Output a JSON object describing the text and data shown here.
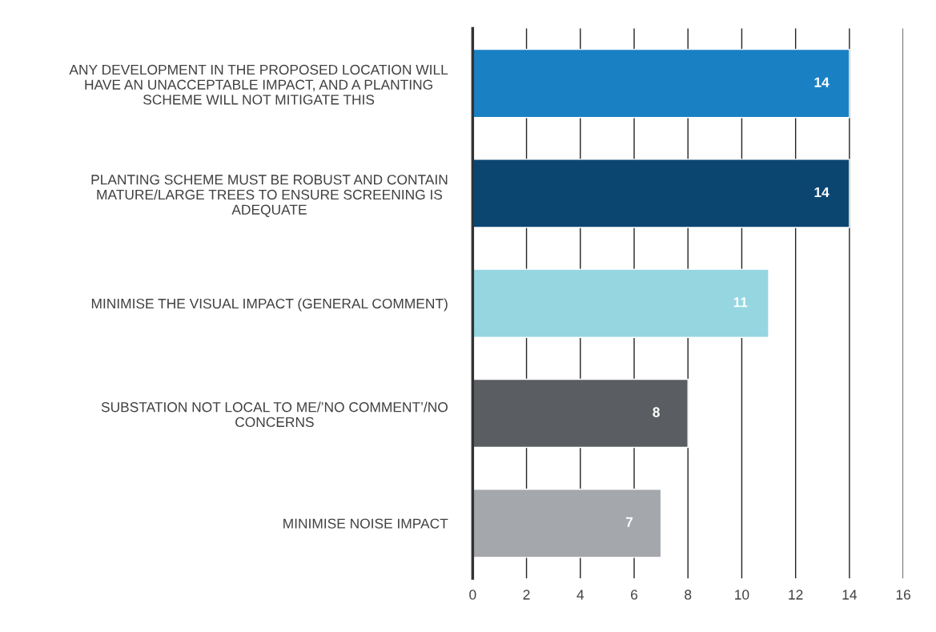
{
  "chart_data": {
    "type": "bar",
    "orientation": "horizontal",
    "categories": [
      "ANY DEVELOPMENT IN THE PROPOSED LOCATION WILL\nHAVE AN UNACCEPTABLE IMPACT, AND A PLANTING\nSCHEME WILL NOT MITIGATE THIS",
      "PLANTING SCHEME MUST BE ROBUST AND CONTAIN\nMATURE/LARGE TREES TO ENSURE SCREENING IS\nADEQUATE",
      "MINIMISE THE VISUAL IMPACT (GENERAL COMMENT)",
      "SUBSTATION NOT LOCAL TO ME/’NO COMMENT’/NO\nCONCERNS",
      "MINIMISE NOISE IMPACT"
    ],
    "values": [
      14,
      14,
      11,
      8,
      7
    ],
    "colors": [
      "#1a80c4",
      "#0b4670",
      "#95d6e1",
      "#5a5e62",
      "#a4a7ab"
    ],
    "xlim": [
      0,
      16
    ],
    "xticks": [
      0,
      2,
      4,
      6,
      8,
      10,
      12,
      14,
      16
    ],
    "grid": "x",
    "data_labels": true
  }
}
